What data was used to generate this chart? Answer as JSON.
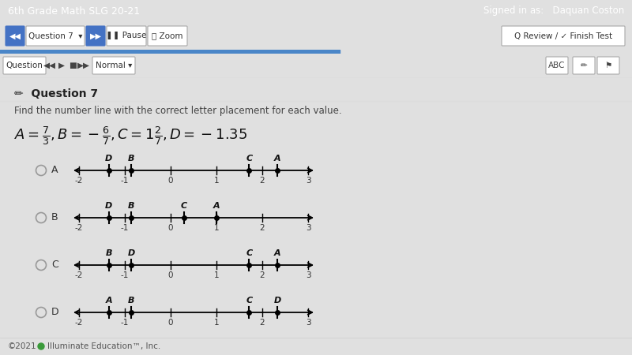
{
  "title": "6th Grade Math SLG 20-21",
  "signed_in": "Signed in as:   Daquan Coston",
  "question_label": "Question 7",
  "instruction": "Find the number line with the correct letter placement for each value.",
  "options": [
    "A",
    "B",
    "C",
    "D"
  ],
  "number_line_ticks": [
    -2,
    -1,
    0,
    1,
    2,
    3
  ],
  "lines": {
    "A": {
      "D": -1.35,
      "B": -0.857,
      "C": 1.714,
      "A": 2.333
    },
    "B": {
      "D": -1.35,
      "B": -0.857,
      "C": 0.286,
      "A": 1.0
    },
    "C": {
      "B": -1.35,
      "D": -0.857,
      "C": 1.714,
      "A": 2.333
    },
    "D": {
      "A": -1.35,
      "B": -0.857,
      "C": 1.714,
      "D": 2.333
    }
  },
  "header_bg": "#2b2b2b",
  "header_text": "#ffffff",
  "nav_bg": "#e0e0e0",
  "content_bg": "#ffffff",
  "blue_btn": "#4472c4",
  "progress_blue": "#4a86c8",
  "footer_bg": "#eeeeee",
  "radio_color": "#aaaaaa",
  "text_color": "#333333"
}
